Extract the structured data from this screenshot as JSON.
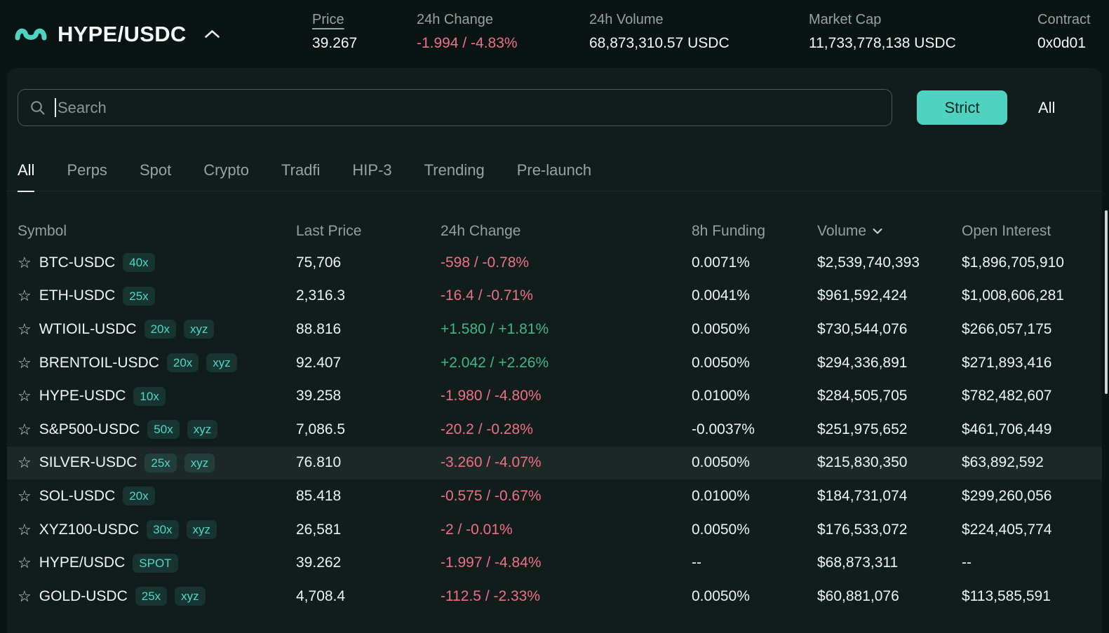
{
  "colors": {
    "accent": "#50d2c1",
    "negative": "#ed7088",
    "positive": "#3fb68f",
    "panel_bg": "#101d1b",
    "page_bg": "#0a1413"
  },
  "header": {
    "pair": "HYPE/USDC",
    "stats": [
      {
        "key": "price",
        "label": "Price",
        "value": "39.267",
        "value_class": ""
      },
      {
        "key": "change-24h",
        "label": "24h Change",
        "value": "-1.994 / -4.83%",
        "value_class": "negative"
      },
      {
        "key": "volume-24h",
        "label": "24h Volume",
        "value": "68,873,310.57 USDC",
        "value_class": ""
      },
      {
        "key": "market-cap",
        "label": "Market Cap",
        "value": "11,733,778,138 USDC",
        "value_class": ""
      },
      {
        "key": "contract",
        "label": "Contract",
        "value": "0x0d01",
        "value_class": ""
      }
    ]
  },
  "search": {
    "placeholder": "Search",
    "filter_buttons": [
      {
        "label": "Strict",
        "active": true
      },
      {
        "label": "All",
        "active": false
      }
    ]
  },
  "tabs": [
    {
      "label": "All",
      "active": true
    },
    {
      "label": "Perps",
      "active": false
    },
    {
      "label": "Spot",
      "active": false
    },
    {
      "label": "Crypto",
      "active": false
    },
    {
      "label": "Tradfi",
      "active": false
    },
    {
      "label": "HIP-3",
      "active": false
    },
    {
      "label": "Trending",
      "active": false
    },
    {
      "label": "Pre-launch",
      "active": false
    }
  ],
  "table": {
    "columns": [
      {
        "label": "Symbol",
        "sorted": false
      },
      {
        "label": "Last Price",
        "sorted": false
      },
      {
        "label": "24h Change",
        "sorted": false
      },
      {
        "label": "8h Funding",
        "sorted": false
      },
      {
        "label": "Volume",
        "sorted": true
      },
      {
        "label": "Open Interest",
        "sorted": false
      }
    ],
    "rows": [
      {
        "symbol": "BTC-USDC",
        "badges": [
          "40x"
        ],
        "last_price": "75,706",
        "change": "-598 / -0.78%",
        "direction": "down",
        "funding": "0.0071%",
        "volume": "$2,539,740,393",
        "open_interest": "$1,896,705,910",
        "highlighted": false
      },
      {
        "symbol": "ETH-USDC",
        "badges": [
          "25x"
        ],
        "last_price": "2,316.3",
        "change": "-16.4 / -0.71%",
        "direction": "down",
        "funding": "0.0041%",
        "volume": "$961,592,424",
        "open_interest": "$1,008,606,281",
        "highlighted": false
      },
      {
        "symbol": "WTIOIL-USDC",
        "badges": [
          "20x",
          "xyz"
        ],
        "last_price": "88.816",
        "change": "+1.580 / +1.81%",
        "direction": "up",
        "funding": "0.0050%",
        "volume": "$730,544,076",
        "open_interest": "$266,057,175",
        "highlighted": false
      },
      {
        "symbol": "BRENTOIL-USDC",
        "badges": [
          "20x",
          "xyz"
        ],
        "last_price": "92.407",
        "change": "+2.042 / +2.26%",
        "direction": "up",
        "funding": "0.0050%",
        "volume": "$294,336,891",
        "open_interest": "$271,893,416",
        "highlighted": false
      },
      {
        "symbol": "HYPE-USDC",
        "badges": [
          "10x"
        ],
        "last_price": "39.258",
        "change": "-1.980 / -4.80%",
        "direction": "down",
        "funding": "0.0100%",
        "volume": "$284,505,705",
        "open_interest": "$782,482,607",
        "highlighted": false
      },
      {
        "symbol": "S&P500-USDC",
        "badges": [
          "50x",
          "xyz"
        ],
        "last_price": "7,086.5",
        "change": "-20.2 / -0.28%",
        "direction": "down",
        "funding": "-0.0037%",
        "volume": "$251,975,652",
        "open_interest": "$461,706,449",
        "highlighted": false
      },
      {
        "symbol": "SILVER-USDC",
        "badges": [
          "25x",
          "xyz"
        ],
        "last_price": "76.810",
        "change": "-3.260 / -4.07%",
        "direction": "down",
        "funding": "0.0050%",
        "volume": "$215,830,350",
        "open_interest": "$63,892,592",
        "highlighted": true
      },
      {
        "symbol": "SOL-USDC",
        "badges": [
          "20x"
        ],
        "last_price": "85.418",
        "change": "-0.575 / -0.67%",
        "direction": "down",
        "funding": "0.0100%",
        "volume": "$184,731,074",
        "open_interest": "$299,260,056",
        "highlighted": false
      },
      {
        "symbol": "XYZ100-USDC",
        "badges": [
          "30x",
          "xyz"
        ],
        "last_price": "26,581",
        "change": "-2 / -0.01%",
        "direction": "down",
        "funding": "0.0050%",
        "volume": "$176,533,072",
        "open_interest": "$224,405,774",
        "highlighted": false
      },
      {
        "symbol": "HYPE/USDC",
        "badges": [
          "SPOT"
        ],
        "last_price": "39.262",
        "change": "-1.997 / -4.84%",
        "direction": "down",
        "funding": "--",
        "volume": "$68,873,311",
        "open_interest": "--",
        "highlighted": false
      },
      {
        "symbol": "GOLD-USDC",
        "badges": [
          "25x",
          "xyz"
        ],
        "last_price": "4,708.4",
        "change": "-112.5 / -2.33%",
        "direction": "down",
        "funding": "0.0050%",
        "volume": "$60,881,076",
        "open_interest": "$113,585,591",
        "highlighted": false
      }
    ]
  }
}
